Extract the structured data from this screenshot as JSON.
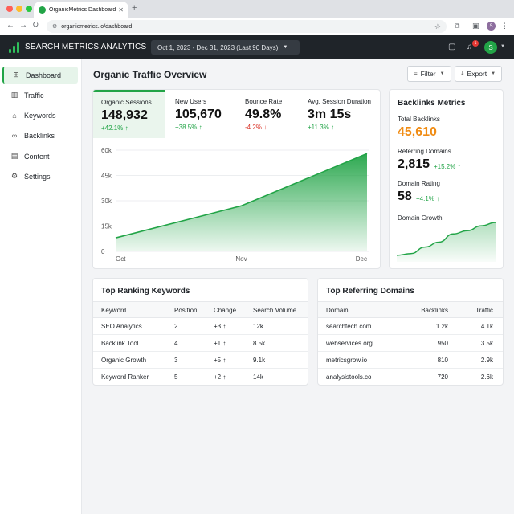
{
  "browser": {
    "tab_title": "OrganicMetrics Dashboard",
    "url": "organicmetrics.io/dashboard",
    "profile_initial": "S"
  },
  "header": {
    "brand": "SEARCH METRICS ANALYTICS",
    "date_range": "Oct 1, 2023 - Dec 31, 2023 (Last 90 Days)",
    "notification_count": "1",
    "user_initial": "S"
  },
  "sidebar": {
    "items": [
      {
        "label": "Dashboard",
        "icon": "grid-icon",
        "active": true
      },
      {
        "label": "Traffic",
        "icon": "bar-chart-icon"
      },
      {
        "label": "Keywords",
        "icon": "tag-icon"
      },
      {
        "label": "Backlinks",
        "icon": "link-icon"
      },
      {
        "label": "Content",
        "icon": "document-icon"
      },
      {
        "label": "Settings",
        "icon": "gear-icon"
      }
    ]
  },
  "main": {
    "title": "Organic Traffic Overview",
    "filter_label": "Filter",
    "export_label": "Export"
  },
  "kpis": [
    {
      "label": "Organic Sessions",
      "value": "148,932",
      "delta": "+42.1%",
      "trend": "up"
    },
    {
      "label": "New Users",
      "value": "105,670",
      "delta": "+38.5%",
      "trend": "up"
    },
    {
      "label": "Bounce Rate",
      "value": "49.8%",
      "delta": "-4.2%",
      "trend": "down"
    },
    {
      "label": "Avg. Session Duration",
      "value": "3m 15s",
      "delta": "+11.3%",
      "trend": "up"
    }
  ],
  "chart_data": [
    {
      "type": "area",
      "x": [
        "Oct",
        "Nov",
        "Dec"
      ],
      "series": [
        {
          "values": [
            8000,
            27000,
            58000
          ]
        }
      ],
      "ylim": [
        0,
        60000
      ],
      "yticks": [
        "0",
        "15k",
        "30k",
        "45k",
        "60k"
      ],
      "grid": true,
      "color": "#22a447"
    },
    {
      "type": "area",
      "series": [
        {
          "values": [
            2,
            2.5,
            4.5,
            6,
            8.5,
            9.5,
            11,
            12
          ]
        }
      ],
      "color": "#22a447"
    }
  ],
  "backlinks": {
    "title": "Backlinks Metrics",
    "total_label": "Total Backlinks",
    "total_value": "45,610",
    "referring_label": "Referring Domains",
    "referring_value": "2,815",
    "referring_delta": "+15.2%",
    "rating_label": "Domain Rating",
    "rating_value": "58",
    "rating_delta": "+4.1%",
    "growth_label": "Domain Growth"
  },
  "keywords_table": {
    "title": "Top Ranking Keywords",
    "columns": [
      "Keyword",
      "Position",
      "Change",
      "Search Volume"
    ],
    "rows": [
      [
        "SEO Analytics",
        "2",
        "+3",
        "12k"
      ],
      [
        "Backlink Tool",
        "4",
        "+1",
        "8.5k"
      ],
      [
        "Organic Growth",
        "3",
        "+5",
        "9.1k"
      ],
      [
        "Keyword Ranker",
        "5",
        "+2",
        "14k"
      ]
    ]
  },
  "domains_table": {
    "title": "Top Referring Domains",
    "columns": [
      "Domain",
      "Backlinks",
      "Traffic"
    ],
    "rows": [
      [
        "searchtech.com",
        "1.2k",
        "4.1k"
      ],
      [
        "webservices.org",
        "950",
        "3.5k"
      ],
      [
        "metricsgrow.io",
        "810",
        "2.9k"
      ],
      [
        "analysistools.co",
        "720",
        "2.6k"
      ]
    ]
  }
}
